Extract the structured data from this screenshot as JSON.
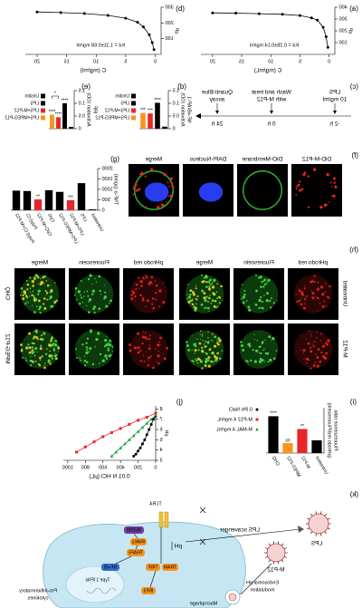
{
  "chart_data": [
    {
      "type": "line",
      "label": "(a)",
      "annotation": "Kd = 0.28±0.14 mg/ml",
      "x_label": "C (mg/mL)",
      "y_label": "dP",
      "x": [
        0.2,
        0.5,
        1,
        2,
        3,
        5,
        8,
        12,
        16,
        20
      ],
      "values": [
        60,
        150,
        230,
        290,
        310,
        330,
        340,
        345,
        350,
        352
      ],
      "color": "#000000",
      "xlim": [
        -1,
        22
      ],
      "xticks": [
        0,
        5,
        10,
        15,
        20
      ],
      "ylim": [
        0,
        400
      ],
      "yticks": [
        100,
        200,
        300,
        400
      ]
    },
    {
      "type": "line",
      "label": "(b)",
      "annotation": "Kd = 1.11±0.68 mg/ml",
      "x_label": "C (mg/ml)",
      "y_label": "dP",
      "x": [
        0.2,
        0.5,
        1,
        2,
        3,
        5,
        8,
        12,
        16,
        20
      ],
      "values": [
        30,
        75,
        125,
        175,
        205,
        230,
        248,
        260,
        266,
        270
      ],
      "color": "#000000",
      "xlim": [
        -1,
        22
      ],
      "xticks": [
        0,
        5,
        10,
        15,
        20
      ],
      "ylim": [
        0,
        300
      ],
      "yticks": [
        100,
        200,
        300
      ]
    },
    {
      "type": "bar",
      "label": "(d)",
      "y_label": [
        "NF-κB/AP-1",
        "Activation (OD)"
      ],
      "categories": [
        "Unstim",
        "LPS",
        "LPS+M-P12",
        "LPS+MPEG-P12"
      ],
      "values": [
        0.08,
        1.02,
        0.6,
        0.62
      ],
      "colors": [
        "#000000",
        "#000000",
        "#e8262a",
        "#f7941d"
      ],
      "significance": [
        null,
        "****",
        "***",
        "***"
      ],
      "ylim": [
        0,
        1.5
      ],
      "yticks": [
        0,
        0.5,
        {
          "value": 1,
          "label": "1.0"
        },
        1.5
      ],
      "legend": "right"
    },
    {
      "type": "bar",
      "label": "(e)",
      "y_label": [
        "IRF",
        "Activation (OD)"
      ],
      "categories": [
        "Unstim",
        "LPS",
        "LPS+M-P12",
        "LPS+MPEG-P12"
      ],
      "values": [
        0.07,
        1.0,
        0.45,
        0.55
      ],
      "colors": [
        "#000000",
        "#000000",
        "#e8262a",
        "#f7941d"
      ],
      "significance": [
        null,
        "****",
        "****",
        "****"
      ],
      "brackets": [
        "*"
      ],
      "ylim": [
        0,
        1.5
      ],
      "yticks": [
        0,
        0.5,
        {
          "value": 1,
          "label": "1.0"
        },
        1.5
      ],
      "legend": "right"
    },
    {
      "type": "bar",
      "label": "(g)",
      "y_label": "TNF-α (pg/ml)",
      "categories": [
        "Untreated",
        "LPS",
        "LPS+M-P12",
        "LPS+MPEG-P12",
        "CpG",
        "CpG+M-P12",
        "Poly(I:C)",
        "Poly(I:C)+M-P12"
      ],
      "values": [
        40,
        1300,
        480,
        880,
        960,
        520,
        920,
        940
      ],
      "colors": [
        "#000000",
        "#000000",
        "#e8262a",
        "#000000",
        "#000000",
        "#e8262a",
        "#000000",
        "#000000"
      ],
      "significance": [
        null,
        null,
        "***",
        null,
        null,
        "**",
        null,
        null
      ],
      "ylim": [
        0,
        2000
      ],
      "yticks": [
        0,
        500,
        1000,
        1500,
        2000
      ]
    },
    {
      "type": "bar",
      "label": "(i)",
      "y_label": [
        "Fluorescence ratio",
        "(pHrodo red/Fluorescein)"
      ],
      "categories": [
        "Untreated",
        "M-P12",
        "MPEG-P12",
        "CHQ"
      ],
      "values": [
        0.45,
        0.85,
        0.35,
        1.3
      ],
      "colors": [
        "#000000",
        "#e8262a",
        "#f7941d",
        "#000000"
      ],
      "significance": [
        null,
        "**",
        "ns",
        "****"
      ],
      "ylim": [
        0,
        1.6
      ]
    },
    {
      "type": "line",
      "label": "(j)",
      "x_label": "0.01 N HCl (µL)",
      "y_label": "pH",
      "xlim": [
        0,
        1050
      ],
      "xticks": [
        0,
        200,
        400,
        600,
        800,
        1000
      ],
      "ylim": [
        3,
        8.3
      ],
      "yticks": [
        3,
        4,
        5,
        6,
        7,
        8
      ],
      "series": [
        {
          "name": "0.9% NaCl",
          "color": "#000000",
          "marker": "circle",
          "x": [
            0,
            25,
            50,
            75,
            100,
            125,
            150,
            175,
            200,
            225,
            250
          ],
          "values": [
            7.3,
            7.0,
            6.5,
            6.0,
            5.5,
            5.0,
            4.6,
            4.2,
            3.9,
            3.6,
            3.4
          ]
        },
        {
          "name": "M-P12 4 mg/mL",
          "color": "#e8262a",
          "marker": "square",
          "x": [
            0,
            100,
            200,
            300,
            400,
            500,
            600,
            700,
            800,
            900
          ],
          "values": [
            7.6,
            7.2,
            6.9,
            6.5,
            6.1,
            5.7,
            5.3,
            4.8,
            4.3,
            3.8
          ]
        },
        {
          "name": "M-MAL 4 mg/mL",
          "color": "#1a9e3a",
          "marker": "triangle",
          "x": [
            0,
            50,
            100,
            150,
            200,
            250,
            300,
            350,
            400,
            450,
            500
          ],
          "values": [
            7.4,
            7.0,
            6.6,
            6.2,
            5.8,
            5.4,
            5.0,
            4.6,
            4.2,
            3.8,
            3.4
          ]
        }
      ]
    }
  ],
  "timeline": {
    "label": "(c)",
    "events": [
      {
        "text": [
          "LPS",
          "10 mg/ml"
        ],
        "time": "-2 h"
      },
      {
        "text": [
          "Wash and treat",
          "with M-P12"
        ],
        "time": "0 h"
      },
      {
        "text": [
          "Quanti-Blue",
          "assay"
        ],
        "time": "24 h"
      }
    ]
  },
  "micrographs": [
    {
      "label": "(f)",
      "columns": [
        "DiD-M-P12",
        "DiO-Membrane",
        "DAPI-Nucleus",
        "Merge"
      ]
    },
    {
      "label": "(h)",
      "groups": [
        {
          "columns": [
            "pHrodo red",
            "Fluorescein",
            "Merge"
          ],
          "rows": [
            "Untreated",
            "M-P12"
          ]
        },
        {
          "columns": [
            "pHrodo red",
            "Fluorescein",
            "Merge"
          ],
          "rows": [
            "CHQ",
            "MPEG-P12"
          ]
        }
      ]
    }
  ],
  "diagram": {
    "label": "(k)",
    "lps_scavenger": "LPS scavenger",
    "endosomal": [
      "Endosomal pH",
      "modulation"
    ],
    "macrophage": "Macrophage",
    "particle": "M-P12",
    "lps": "LPS",
    "receptor": "TLR4",
    "nodes": [
      "MyD88",
      "IRAKs",
      "TRAF6",
      "NF-κB",
      "TRAM",
      "TRIF",
      "IRF3",
      "pH",
      "Type 1 IFNs"
    ],
    "cytokines": [
      "Pro-inflammatory",
      "cytokines"
    ]
  }
}
